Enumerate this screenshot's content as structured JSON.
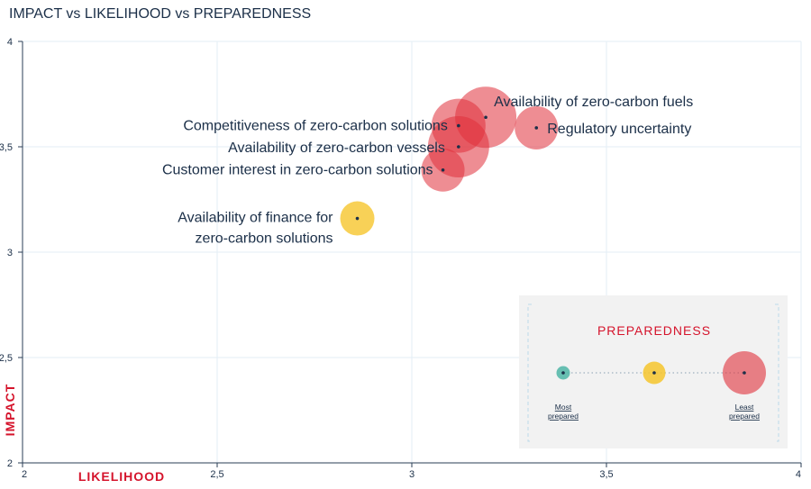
{
  "chart_data": {
    "type": "scatter",
    "title": "IMPACT vs LIKELIHOOD vs PREPAREDNESS",
    "xlabel": "LIKELIHOOD",
    "ylabel": "IMPACT",
    "xlim": [
      2,
      4
    ],
    "ylim": [
      2,
      4
    ],
    "xticks": [
      "2",
      "2,5",
      "3",
      "3,5",
      "4"
    ],
    "yticks": [
      "2",
      "2,5",
      "3",
      "3,5",
      "4"
    ],
    "grid": true,
    "points": [
      {
        "label": "Availability of zero-carbon fuels",
        "x": 3.19,
        "y": 3.64,
        "preparedness": "least",
        "color": "#e0303b"
      },
      {
        "label": "Competitiveness of zero-carbon solutions",
        "x": 3.12,
        "y": 3.6,
        "preparedness": "least",
        "color": "#e0303b"
      },
      {
        "label": "Regulatory uncertainty",
        "x": 3.32,
        "y": 3.59,
        "preparedness": "least",
        "color": "#e0303b"
      },
      {
        "label": "Availability of zero-carbon vessels",
        "x": 3.12,
        "y": 3.5,
        "preparedness": "least",
        "color": "#e0303b"
      },
      {
        "label": "Customer interest in zero-carbon solutions",
        "x": 3.08,
        "y": 3.39,
        "preparedness": "least",
        "color": "#e0303b"
      },
      {
        "label": "Availability of finance for\nzero-carbon solutions",
        "x": 2.86,
        "y": 3.16,
        "preparedness": "medium",
        "color": "#f6c52d"
      }
    ],
    "legend": {
      "title": "PREPAREDNESS",
      "placement": "bottom-right",
      "most_label": "Most\nprepared",
      "least_label": "Least\nprepared",
      "colors": [
        "#4fb6a7",
        "#f6c52d",
        "#e0303b"
      ]
    },
    "colors": {
      "axis_label": "#d5142c",
      "text": "#1b2f48",
      "grid": "#e3eef5",
      "axis": "#2a3d55"
    }
  }
}
